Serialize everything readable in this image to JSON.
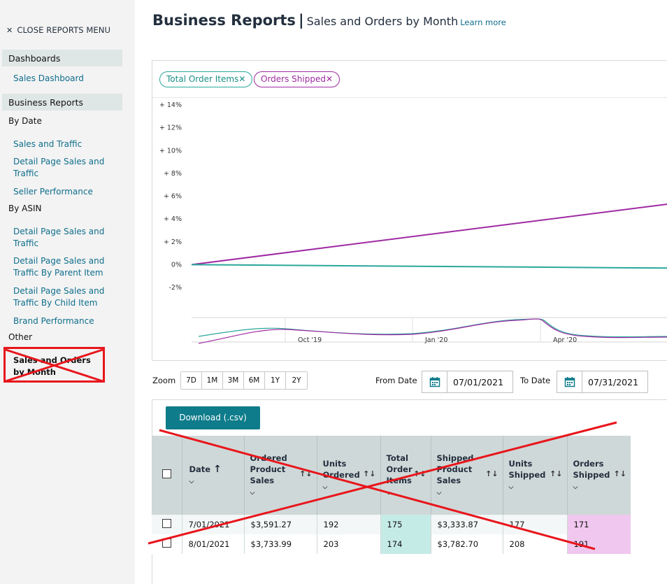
{
  "sidebar": {
    "close_label": "CLOSE REPORTS MENU",
    "dashboards_heading": "Dashboards",
    "sales_dashboard": "Sales Dashboard",
    "business_reports_heading": "Business Reports",
    "by_date": "By Date",
    "by_date_items": [
      "Sales and Traffic",
      "Detail Page Sales and Traffic",
      "Seller Performance"
    ],
    "by_asin": "By ASIN",
    "by_asin_items": [
      "Detail Page Sales and Traffic",
      "Detail Page Sales and Traffic By Parent Item",
      "Detail Page Sales and Traffic By Child Item",
      "Brand Performance"
    ],
    "other": "Other",
    "active_item": "Sales and Orders by Month"
  },
  "header": {
    "title": "Business Reports",
    "separator": "|",
    "subtitle": "Sales and Orders by Month",
    "learn_more": "Learn more"
  },
  "chips": [
    {
      "label": "Total Order Items",
      "color": "#2aa79b"
    },
    {
      "label": "Orders Shipped",
      "color": "#9f2aa3"
    }
  ],
  "chart_data": {
    "type": "line",
    "y_ticks": [
      "+ 14%",
      "+ 12%",
      "+ 10%",
      "+ 8%",
      "+ 6%",
      "+ 4%",
      "+ 2%",
      "0%",
      "-2%"
    ],
    "ylim": [
      -2,
      14
    ],
    "series": [
      {
        "name": "Orders Shipped",
        "color": "#9f2aa3",
        "values": [
          0,
          5.3
        ]
      },
      {
        "name": "Total Order Items",
        "color": "#2aa79b",
        "values": [
          0,
          -0.3
        ]
      }
    ],
    "overview_ticks": [
      "Oct '19",
      "Jan '20",
      "Apr '20"
    ]
  },
  "zoom": {
    "label": "Zoom",
    "options": [
      "7D",
      "1M",
      "3M",
      "6M",
      "1Y",
      "2Y"
    ]
  },
  "dates": {
    "from_label": "From Date",
    "from_value": "07/01/2021",
    "to_label": "To Date",
    "to_value": "07/31/2021"
  },
  "download_label": "Download (.csv)",
  "table": {
    "headers": [
      "Date",
      "Ordered Product Sales",
      "Units Ordered",
      "Total Order Items",
      "Shipped Product Sales",
      "Units Shipped",
      "Orders Shipped"
    ],
    "rows": [
      [
        "7/01/2021",
        "$3,591.27",
        "192",
        "175",
        "$3,333.87",
        "177",
        "171"
      ],
      [
        "8/01/2021",
        "$3,733.99",
        "203",
        "174",
        "$3,782.70",
        "208",
        "191"
      ]
    ]
  },
  "colors": {
    "accent_teal": "#0e7c8b",
    "annotation_red": "#e8161c"
  }
}
